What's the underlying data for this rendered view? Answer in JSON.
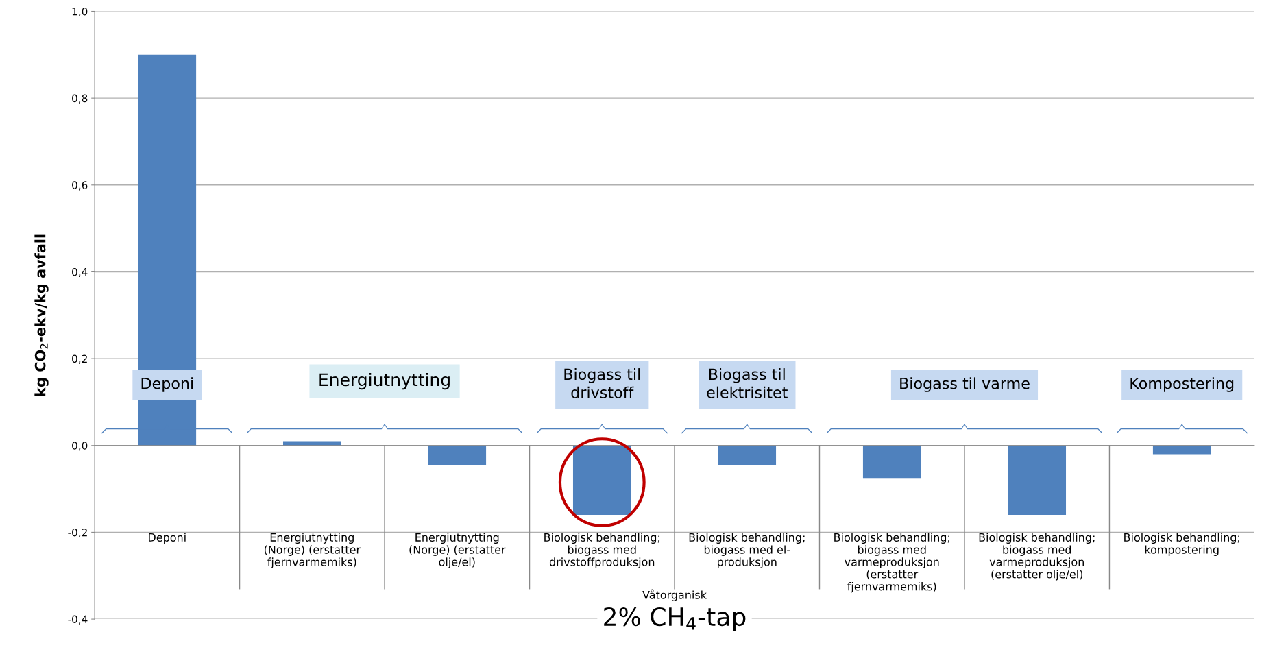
{
  "chart_data": {
    "type": "bar",
    "ylabel": "kg CO$_{2}$-ekv/kg avfall",
    "categories": [
      "Deponi",
      "Energiutnytting\n(Norge) (erstatter\nfjernvarmemiks)",
      "Energiutnytting\n(Norge) (erstatter\nolje/el)",
      "Biologisk behandling;\nbiogass med\ndrivstoffproduksjon",
      "Biologisk behandling;\nbiogass med el-\nproduksjon",
      "Biologisk behandling;\nbiogass med\nvarmeproduksjon\n(erstatter\nfjernvarmemiks)",
      "Biologisk behandling;\nbiogass med\nvarmeproduksjon\n(erstatter olje/el)",
      "Biologisk behandling;\nkompostering"
    ],
    "values": [
      0.9,
      0.01,
      -0.045,
      -0.16,
      -0.045,
      -0.075,
      -0.16,
      -0.02
    ],
    "color": "#4f81bd",
    "ylim": [
      -0.4,
      1.0
    ],
    "yticks": [
      {
        "value": -0.4,
        "label": "-0,4"
      },
      {
        "value": -0.2,
        "label": "-0,2"
      },
      {
        "value": 0.0,
        "label": "0,0"
      },
      {
        "value": 0.2,
        "label": "0,2"
      },
      {
        "value": 0.4,
        "label": "0,4"
      },
      {
        "value": 0.6,
        "label": "0,6"
      },
      {
        "value": 0.8,
        "label": "0,8"
      },
      {
        "value": 1.0,
        "label": "1,0"
      }
    ],
    "grid": "y",
    "annotations": [
      "Deponi",
      "Energiutnytting",
      "Biogass til\ndrivstoff",
      "Biogass til\nelektrisitet",
      "Biogass til varme",
      "Kompostering",
      "Våtorganisk",
      "2% CH$_{4}$-tap"
    ]
  }
}
